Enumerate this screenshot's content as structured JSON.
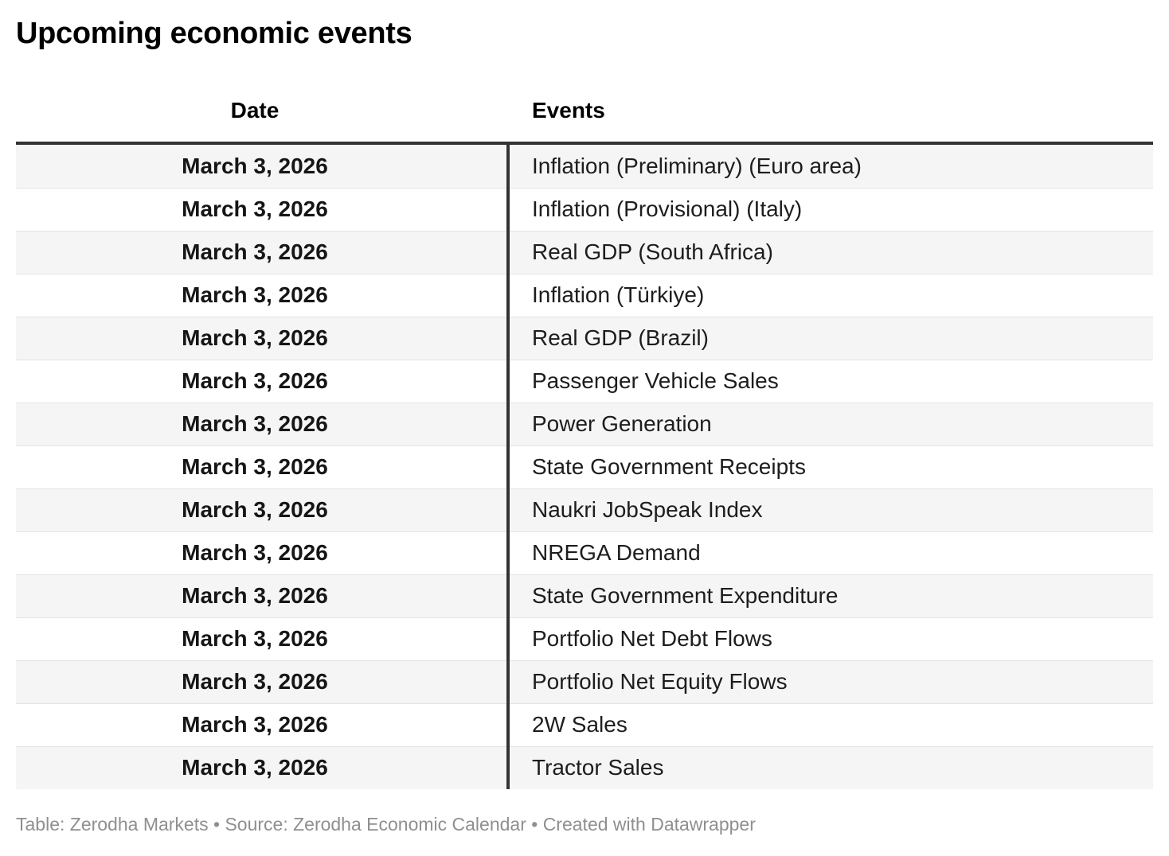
{
  "title": "Upcoming economic events",
  "chart_data": {
    "type": "table",
    "title": "Upcoming economic events",
    "columns": [
      "Date",
      "Events"
    ],
    "rows": [
      [
        "March 3, 2026",
        "Inflation (Preliminary) (Euro area)"
      ],
      [
        "March 3, 2026",
        "Inflation (Provisional) (Italy)"
      ],
      [
        "March 3, 2026",
        "Real GDP (South Africa)"
      ],
      [
        "March 3, 2026",
        "Inflation (Türkiye)"
      ],
      [
        "March 3, 2026",
        "Real GDP (Brazil)"
      ],
      [
        "March 3, 2026",
        "Passenger Vehicle Sales"
      ],
      [
        "March 3, 2026",
        "Power Generation"
      ],
      [
        "March 3, 2026",
        "State Government Receipts"
      ],
      [
        "March 3, 2026",
        "Naukri JobSpeak Index"
      ],
      [
        "March 3, 2026",
        "NREGA Demand"
      ],
      [
        "March 3, 2026",
        "State Government Expenditure"
      ],
      [
        "March 3, 2026",
        "Portfolio Net Debt Flows"
      ],
      [
        "March 3, 2026",
        "Portfolio Net Equity Flows"
      ],
      [
        "March 3, 2026",
        "2W Sales"
      ],
      [
        "March 3, 2026",
        "Tractor Sales"
      ]
    ],
    "layout": {
      "striped_rows": true,
      "date_column_align": "center",
      "events_column_align": "left"
    }
  },
  "footer": {
    "text": "Table: Zerodha Markets • Source: Zerodha Economic Calendar • Created with Datawrapper"
  },
  "colors": {
    "rule": "#333333",
    "stripe": "#f5f5f5",
    "row_border": "#e3e3e3",
    "text": "#1d1d1d",
    "footer_text": "#8f8f8f"
  }
}
